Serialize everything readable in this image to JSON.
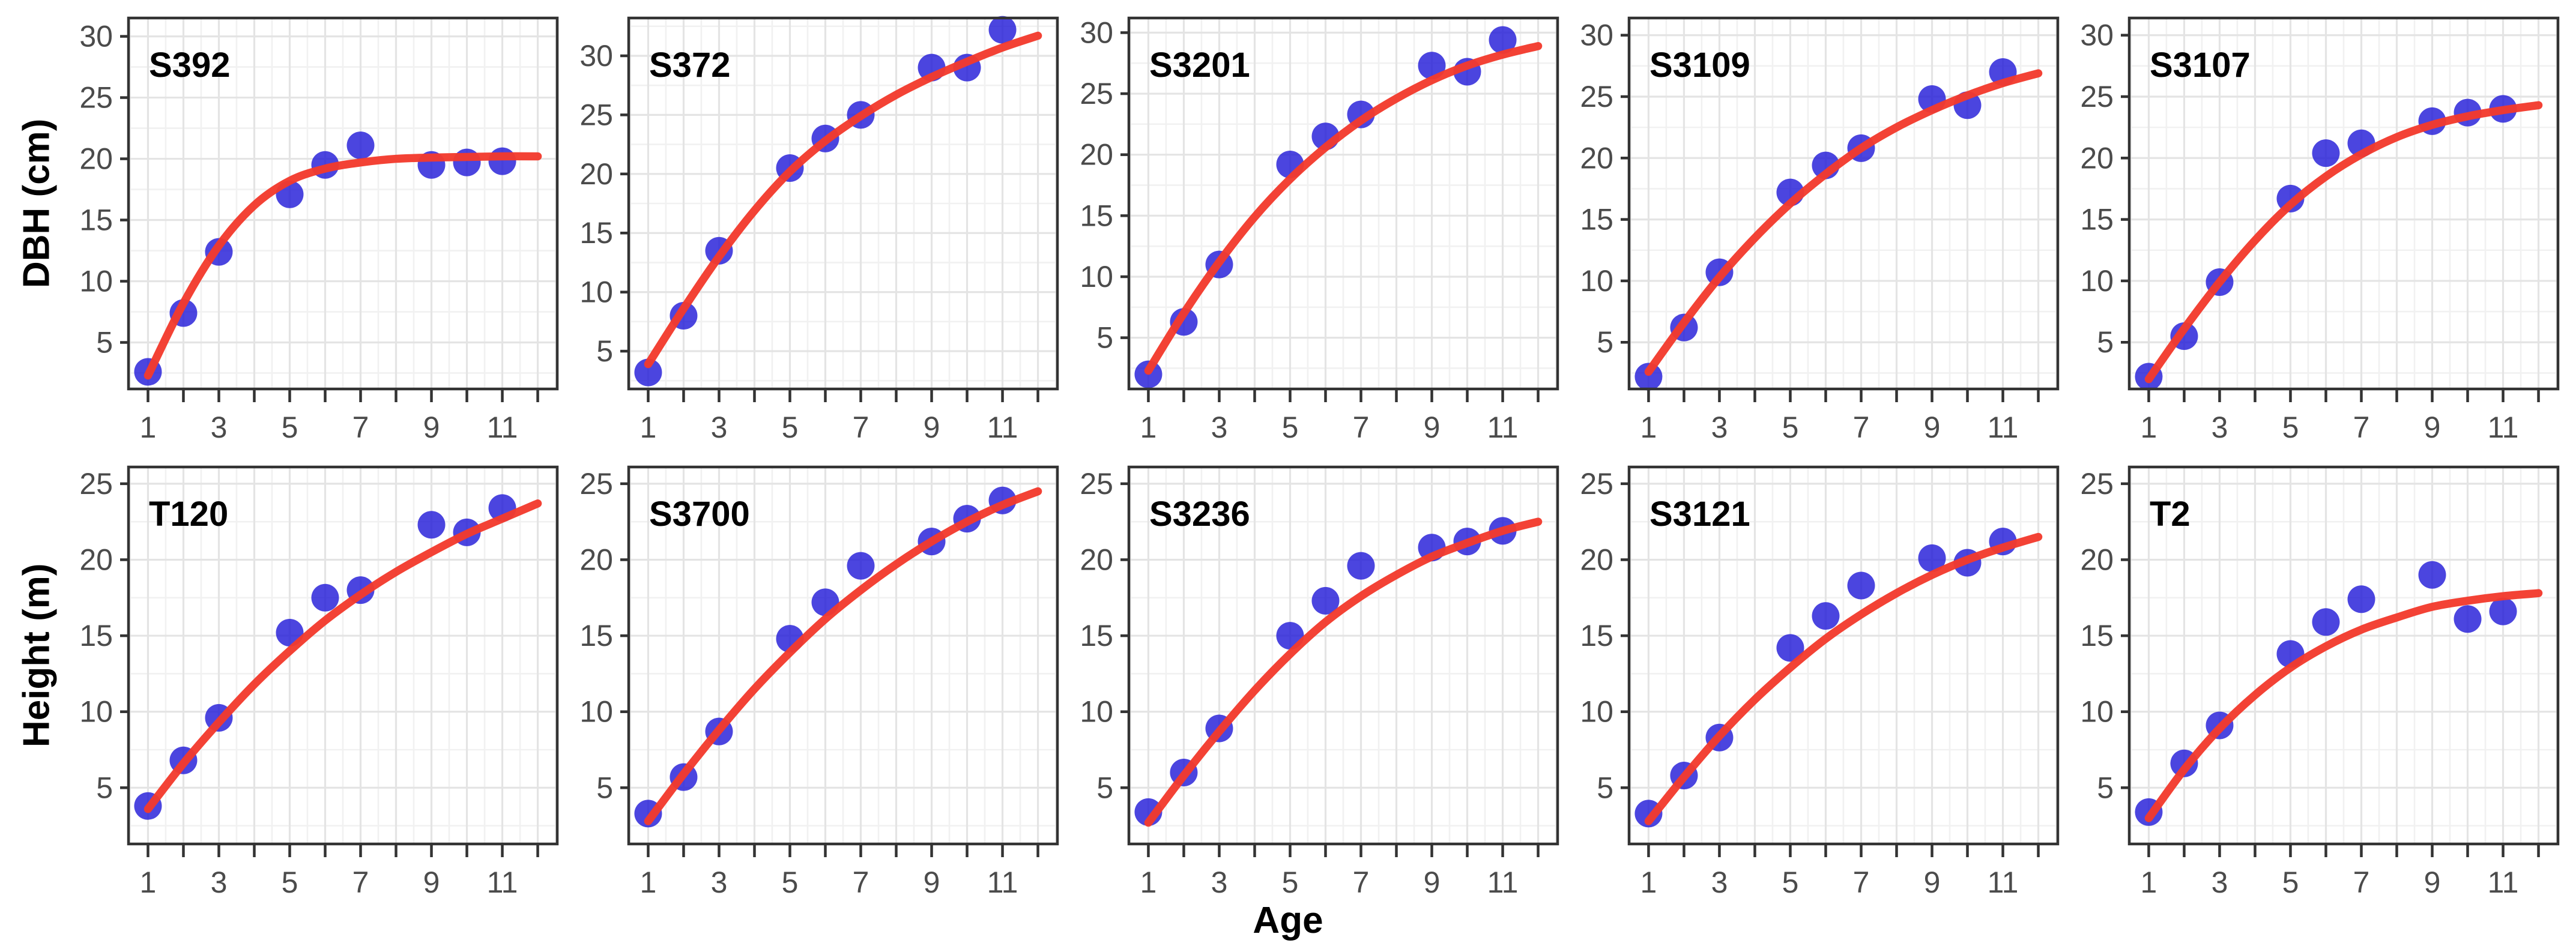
{
  "figure": {
    "x_axis_title": "Age",
    "y_axis_title_top": "DBH (cm)",
    "y_axis_title_bottom": "Height (m)"
  },
  "style": {
    "point_color": "#1E16D7",
    "point_opacity": 0.8,
    "curve_color": "#F23A2D",
    "grid_major_color": "#E4E4E4",
    "grid_minor_color": "#F1F1F1",
    "panel_border_color": "#333333",
    "tick_color": "#333333",
    "tick_label_color": "#4B4B4B",
    "panel_label_color": "#000000",
    "background": "#FFFFFF"
  },
  "chart_data": {
    "type": "scatter",
    "title": "",
    "xlabel": "Age",
    "ylabel_row1": "DBH (cm)",
    "ylabel_row2": "Height (m)",
    "legend": "none",
    "grid": "on",
    "x_domain": [
      0.45,
      12.55
    ],
    "x_major_ticks": [
      1,
      2,
      3,
      4,
      5,
      6,
      7,
      8,
      9,
      10,
      11,
      12
    ],
    "x_labeled_ticks": [
      1,
      3,
      5,
      7,
      9,
      11
    ],
    "point_ages": [
      1,
      2,
      3,
      5,
      6,
      7,
      9,
      10,
      11
    ],
    "fit_ages": [
      1,
      2,
      3,
      4,
      5,
      6,
      7,
      8,
      9,
      10,
      11,
      12
    ],
    "panels": [
      {
        "label": "S392",
        "row": 0,
        "col": 0,
        "y_label": "DBH (cm)",
        "y_ticks": [
          5,
          10,
          15,
          20,
          25,
          30
        ],
        "y_domain": [
          1.2,
          31.5
        ],
        "points": [
          2.6,
          7.4,
          12.4,
          17.1,
          19.5,
          21.1,
          19.5,
          19.7,
          19.8
        ],
        "fit": [
          2.3,
          8.2,
          12.9,
          16.2,
          18.2,
          19.2,
          19.7,
          20.0,
          20.1,
          20.15,
          20.2,
          20.2
        ]
      },
      {
        "label": "S372",
        "row": 0,
        "col": 1,
        "y_label": "DBH (cm)",
        "y_ticks": [
          5,
          10,
          15,
          20,
          25,
          30
        ],
        "y_domain": [
          1.8,
          33.2
        ],
        "points": [
          3.2,
          8.0,
          13.5,
          20.5,
          23.0,
          25.0,
          29.0,
          29.0,
          32.2
        ],
        "fit": [
          3.9,
          8.6,
          13.0,
          16.9,
          20.2,
          22.8,
          24.9,
          26.7,
          28.2,
          29.5,
          30.7,
          31.7
        ]
      },
      {
        "label": "S3201",
        "row": 0,
        "col": 2,
        "y_label": "DBH (cm)",
        "y_ticks": [
          5,
          10,
          15,
          20,
          25,
          30
        ],
        "y_domain": [
          0.8,
          31.2
        ],
        "points": [
          2.0,
          6.3,
          11.0,
          19.2,
          21.5,
          23.3,
          27.3,
          26.8,
          29.4
        ],
        "fit": [
          2.3,
          7.0,
          11.2,
          14.9,
          18.0,
          20.6,
          22.8,
          24.6,
          26.1,
          27.3,
          28.2,
          28.9
        ]
      },
      {
        "label": "S3109",
        "row": 0,
        "col": 3,
        "y_label": "DBH (cm)",
        "y_ticks": [
          5,
          10,
          15,
          20,
          25,
          30
        ],
        "y_domain": [
          1.2,
          31.4
        ],
        "points": [
          2.2,
          6.2,
          10.7,
          17.2,
          19.4,
          20.8,
          24.8,
          24.3,
          27.0
        ],
        "fit": [
          2.6,
          6.6,
          10.3,
          13.5,
          16.3,
          18.7,
          20.8,
          22.5,
          23.9,
          25.1,
          26.1,
          26.9
        ]
      },
      {
        "label": "S3107",
        "row": 0,
        "col": 4,
        "y_label": "DBH (cm)",
        "y_ticks": [
          5,
          10,
          15,
          20,
          25,
          30
        ],
        "y_domain": [
          1.2,
          31.4
        ],
        "points": [
          2.2,
          5.5,
          9.9,
          16.7,
          20.4,
          21.2,
          23.0,
          23.7,
          24.0
        ],
        "fit": [
          2.0,
          6.1,
          9.9,
          13.3,
          16.2,
          18.5,
          20.3,
          21.7,
          22.7,
          23.4,
          23.9,
          24.3
        ]
      },
      {
        "label": "T120",
        "row": 1,
        "col": 0,
        "y_label": "Height (m)",
        "y_ticks": [
          5,
          10,
          15,
          20,
          25
        ],
        "y_domain": [
          1.3,
          26.1
        ],
        "points": [
          3.8,
          6.8,
          9.6,
          15.2,
          17.5,
          18.0,
          22.3,
          21.8,
          23.4
        ],
        "fit": [
          3.6,
          6.6,
          9.3,
          11.8,
          14.0,
          16.0,
          17.7,
          19.2,
          20.5,
          21.7,
          22.7,
          23.7
        ]
      },
      {
        "label": "S3700",
        "row": 1,
        "col": 1,
        "y_label": "Height (m)",
        "y_ticks": [
          5,
          10,
          15,
          20,
          25
        ],
        "y_domain": [
          1.3,
          26.1
        ],
        "points": [
          3.3,
          5.7,
          8.7,
          14.8,
          17.2,
          19.6,
          21.2,
          22.7,
          23.9
        ],
        "fit": [
          2.8,
          5.9,
          8.8,
          11.5,
          13.9,
          16.1,
          18.0,
          19.7,
          21.2,
          22.5,
          23.6,
          24.5
        ]
      },
      {
        "label": "S3236",
        "row": 1,
        "col": 2,
        "y_label": "Height (m)",
        "y_ticks": [
          5,
          10,
          15,
          20,
          25
        ],
        "y_domain": [
          1.3,
          26.1
        ],
        "points": [
          3.4,
          6.0,
          8.9,
          15.0,
          17.3,
          19.6,
          20.8,
          21.2,
          21.9
        ],
        "fit": [
          2.7,
          5.8,
          8.7,
          11.4,
          13.8,
          15.9,
          17.6,
          19.0,
          20.2,
          21.1,
          21.9,
          22.5
        ]
      },
      {
        "label": "S3121",
        "row": 1,
        "col": 3,
        "y_label": "Height (m)",
        "y_ticks": [
          5,
          10,
          15,
          20,
          25
        ],
        "y_domain": [
          1.3,
          26.1
        ],
        "points": [
          3.3,
          5.8,
          8.3,
          14.2,
          16.3,
          18.3,
          20.1,
          19.8,
          21.2
        ],
        "fit": [
          2.8,
          5.7,
          8.4,
          10.8,
          12.9,
          14.8,
          16.4,
          17.8,
          19.0,
          20.0,
          20.8,
          21.5
        ]
      },
      {
        "label": "T2",
        "row": 1,
        "col": 4,
        "y_label": "Height (m)",
        "y_ticks": [
          5,
          10,
          15,
          20,
          25
        ],
        "y_domain": [
          1.3,
          26.1
        ],
        "points": [
          3.4,
          6.6,
          9.1,
          13.8,
          15.9,
          17.4,
          19.0,
          16.1,
          16.6
        ],
        "fit": [
          3.0,
          6.2,
          8.9,
          11.1,
          12.9,
          14.3,
          15.4,
          16.2,
          16.9,
          17.3,
          17.6,
          17.8
        ]
      }
    ]
  }
}
